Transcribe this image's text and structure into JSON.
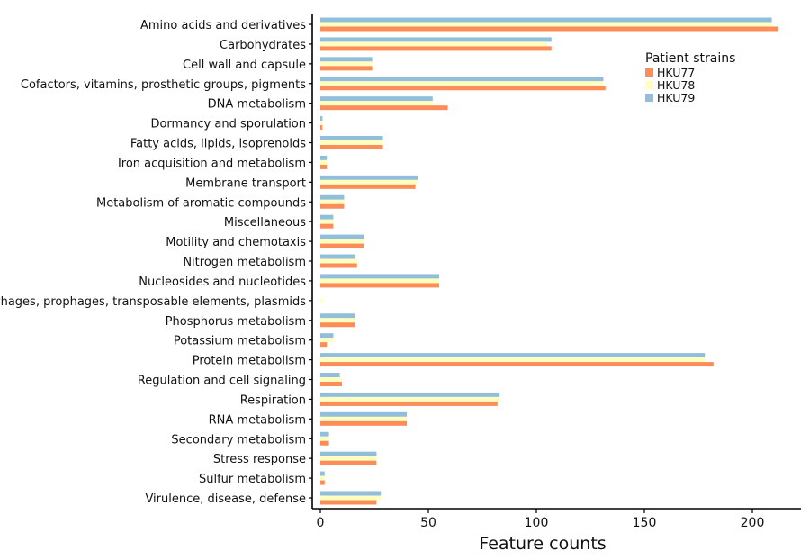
{
  "chart_data": {
    "type": "bar",
    "orientation": "horizontal",
    "title": "",
    "xlabel": "Feature counts",
    "ylabel": "",
    "xlim": [
      0,
      220
    ],
    "xticks": [
      0,
      50,
      100,
      150,
      200
    ],
    "grid": false,
    "legend": {
      "title": "Patient strains",
      "placement": "top-right"
    },
    "categories": [
      "Amino acids and derivatives",
      "Carbohydrates",
      "Cell wall and capsule",
      "Cofactors, vitamins, prosthetic groups, pigments",
      "DNA metabolism",
      "Dormancy and sporulation",
      "Fatty acids, lipids, isoprenoids",
      "Iron acquisition and metabolism",
      "Membrane transport",
      "Metabolism of aromatic compounds",
      "Miscellaneous",
      "Motility and chemotaxis",
      "Nitrogen metabolism",
      "Nucleosides and nucleotides",
      "Phages, prophages, transposable elements, plasmids",
      "Phosphorus metabolism",
      "Potassium metabolism",
      "Protein metabolism",
      "Regulation and cell signaling",
      "Respiration",
      "RNA metabolism",
      "Secondary metabolism",
      "Stress response",
      "Sulfur metabolism",
      "Virulence, disease, defense"
    ],
    "series": [
      {
        "name": "HKU77",
        "name_superscript": "T",
        "color": "#fc8d59",
        "values": [
          212,
          107,
          24,
          132,
          59,
          1,
          29,
          3,
          44,
          11,
          6,
          20,
          17,
          55,
          0,
          16,
          3,
          182,
          10,
          82,
          40,
          4,
          26,
          2,
          26
        ]
      },
      {
        "name": "HKU78",
        "color": "#ffffbf",
        "values": [
          209,
          105,
          24,
          131,
          52,
          1,
          29,
          3,
          45,
          11,
          6,
          20,
          17,
          55,
          1,
          16,
          6,
          178,
          10,
          83,
          40,
          4,
          26,
          2,
          28
        ]
      },
      {
        "name": "HKU79",
        "color": "#91bfdb",
        "values": [
          209,
          107,
          24,
          131,
          52,
          1,
          29,
          3,
          45,
          11,
          6,
          20,
          16,
          55,
          0,
          16,
          6,
          178,
          9,
          83,
          40,
          4,
          26,
          2,
          28
        ]
      }
    ]
  }
}
